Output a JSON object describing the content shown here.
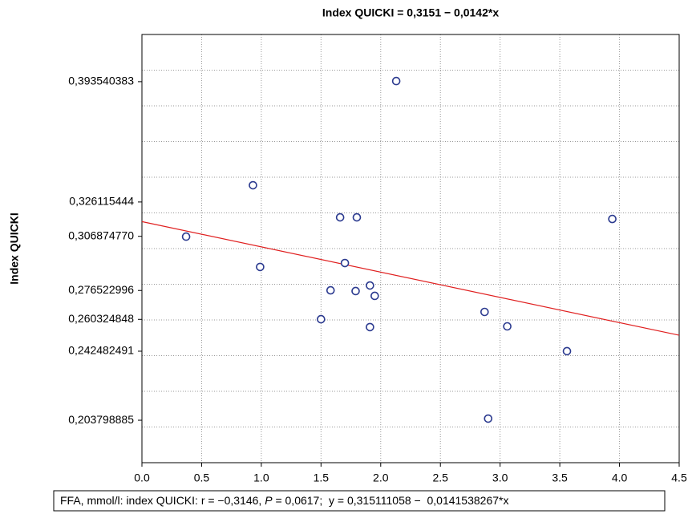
{
  "chart_data": {
    "type": "scatter",
    "title": "Index QUICKI = 0,3151 − 0,0142*x",
    "y_label": "Index QUICKI",
    "footer": [
      "FFA, mmol/l: index QUICKI: r = −0,3146, ",
      "P",
      " = 0,0617;  y = 0,315111058 −  0,0141538267*x"
    ],
    "xlim": [
      0,
      4.5
    ],
    "xticks": [
      {
        "value": 0,
        "label": "0.0"
      },
      0.5,
      {
        "value": 1,
        "label": "1.0"
      },
      1.5,
      {
        "value": 2,
        "label": "2.0"
      },
      2.5,
      {
        "value": 3,
        "label": "3.0"
      },
      3.5,
      {
        "value": 4,
        "label": "4.0"
      },
      4.5
    ],
    "ylim": [
      0.18,
      0.42
    ],
    "yticks": [
      {
        "value": 0.393540383,
        "label": "0,393540383"
      },
      {
        "value": 0.326115444,
        "label": "0,326115444"
      },
      {
        "value": 0.30687477,
        "label": "0,306874770"
      },
      {
        "value": 0.276522996,
        "label": "0,276522996"
      },
      {
        "value": 0.260324848,
        "label": "0,260324848"
      },
      {
        "value": 0.242482491,
        "label": "0,242482491"
      },
      {
        "value": 0.203798885,
        "label": "0,203798885"
      }
    ],
    "ygrid": [
      0.2,
      0.22,
      0.24,
      0.26,
      0.28,
      0.3,
      0.32,
      0.34,
      0.36,
      0.38,
      0.4
    ],
    "grid": true,
    "series": [
      {
        "color": "#2b3a8f",
        "x": [
          0.37,
          0.93,
          0.99,
          1.5,
          1.58,
          1.66,
          1.7,
          1.79,
          1.8,
          1.91,
          1.91,
          1.95,
          2.13,
          2.87,
          2.9,
          3.06,
          3.56,
          3.94
        ],
        "values": [
          0.3067,
          0.3355,
          0.2897,
          0.2604,
          0.2766,
          0.3175,
          0.2919,
          0.2762,
          0.3175,
          0.2793,
          0.256,
          0.2735,
          0.3939,
          0.2645,
          0.2047,
          0.2564,
          0.2425,
          0.3166
        ]
      }
    ],
    "fit": {
      "intercept": 0.315111058,
      "slope": -0.0141538267,
      "color": "#e02020"
    }
  }
}
